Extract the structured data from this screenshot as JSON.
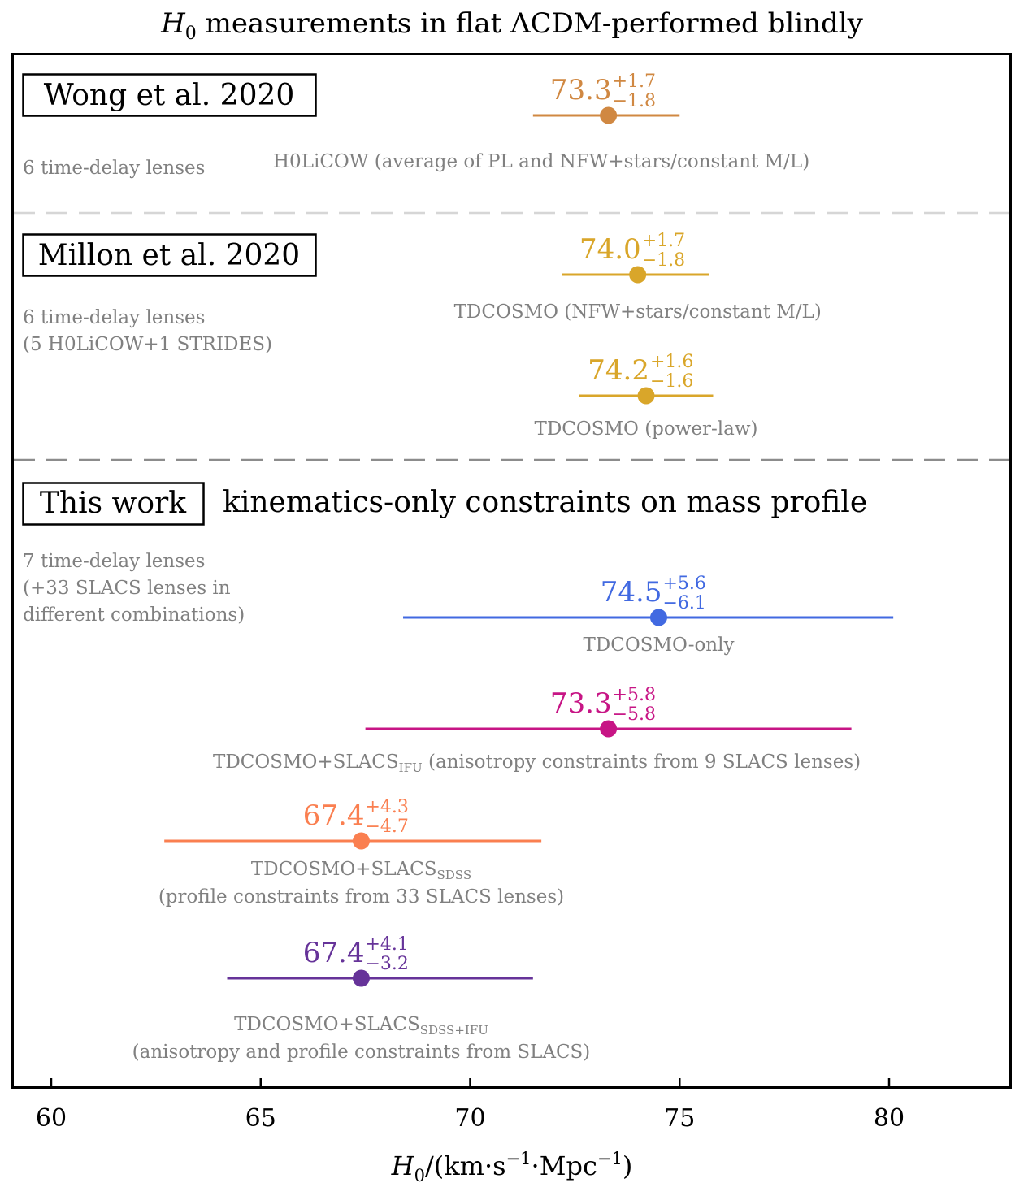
{
  "chart_data": {
    "type": "scatter",
    "title_main": "H",
    "title_sub": "0",
    "title_rest": " measurements in flat ΛCDM-performed blindly",
    "xlabel_main": "H",
    "xlabel_sub": "0",
    "xlabel_rest": "/(km·s",
    "xlabel_exp1": "−1",
    "xlabel_mid": "·Mpc",
    "xlabel_exp2": "−1",
    "xlabel_end": ")",
    "xlim": [
      59.1,
      83
    ],
    "xticks": [
      60,
      65,
      70,
      75,
      80
    ],
    "grid": false,
    "groups": [
      {
        "label": "Wong et al. 2020",
        "header": "",
        "notes": [
          "6 time-delay lenses"
        ]
      },
      {
        "label": "Millon et al. 2020",
        "header": "",
        "notes": [
          "6 time-delay lenses",
          "(5 H0LiCOW+1 STRIDES)"
        ]
      },
      {
        "label": "This work",
        "header": "kinematics-only constraints on mass profile",
        "notes": [
          "7 time-delay lenses",
          "(+33 SLACS lenses in",
          "different combinations)"
        ]
      }
    ],
    "measurements": [
      {
        "value": 73.3,
        "value_text": "73.3",
        "plus": "+1.7",
        "minus": "−1.8",
        "lo": 71.5,
        "hi": 75.0,
        "color": "#D08842",
        "label_lines": [
          [
            "H0LiCOW (average of PL and NFW+stars/constant M/L)",
            "",
            ""
          ]
        ]
      },
      {
        "value": 74.0,
        "value_text": "74.0",
        "plus": "+1.7",
        "minus": "−1.8",
        "lo": 72.2,
        "hi": 75.7,
        "color": "#D9A62A",
        "label_lines": [
          [
            "TDCOSMO (NFW+stars/constant M/L)",
            "",
            ""
          ]
        ]
      },
      {
        "value": 74.2,
        "value_text": "74.2",
        "plus": "+1.6",
        "minus": "−1.6",
        "lo": 72.6,
        "hi": 75.8,
        "color": "#D9A62A",
        "label_lines": [
          [
            "TDCOSMO (power-law)",
            "",
            ""
          ]
        ]
      },
      {
        "value": 74.5,
        "value_text": "74.5",
        "plus": "+5.6",
        "minus": "−6.1",
        "lo": 68.4,
        "hi": 80.1,
        "color": "#4169E1",
        "label_lines": [
          [
            "TDCOSMO-only",
            "",
            ""
          ]
        ]
      },
      {
        "value": 73.3,
        "value_text": "73.3",
        "plus": "+5.8",
        "minus": "−5.8",
        "lo": 67.5,
        "hi": 79.1,
        "color": "#C71585",
        "label_lines": [
          [
            "TDCOSMO+SLACS",
            "IFU",
            " (anisotropy constraints from 9 SLACS lenses)"
          ]
        ]
      },
      {
        "value": 67.4,
        "value_text": "67.4",
        "plus": "+4.3",
        "minus": "−4.7",
        "lo": 62.7,
        "hi": 71.7,
        "color": "#FA7F50",
        "label_lines": [
          [
            "TDCOSMO+SLACS",
            "SDSS",
            ""
          ],
          [
            "(profile constraints from 33 SLACS lenses)",
            "",
            ""
          ]
        ]
      },
      {
        "value": 67.4,
        "value_text": "67.4",
        "plus": "+4.1",
        "minus": "−3.2",
        "lo": 64.2,
        "hi": 71.5,
        "color": "#663399",
        "label_lines": [
          [
            "TDCOSMO+SLACS",
            "SDSS+IFU",
            ""
          ],
          [
            "(anisotropy and profile constraints from SLACS)",
            "",
            ""
          ]
        ]
      }
    ]
  }
}
